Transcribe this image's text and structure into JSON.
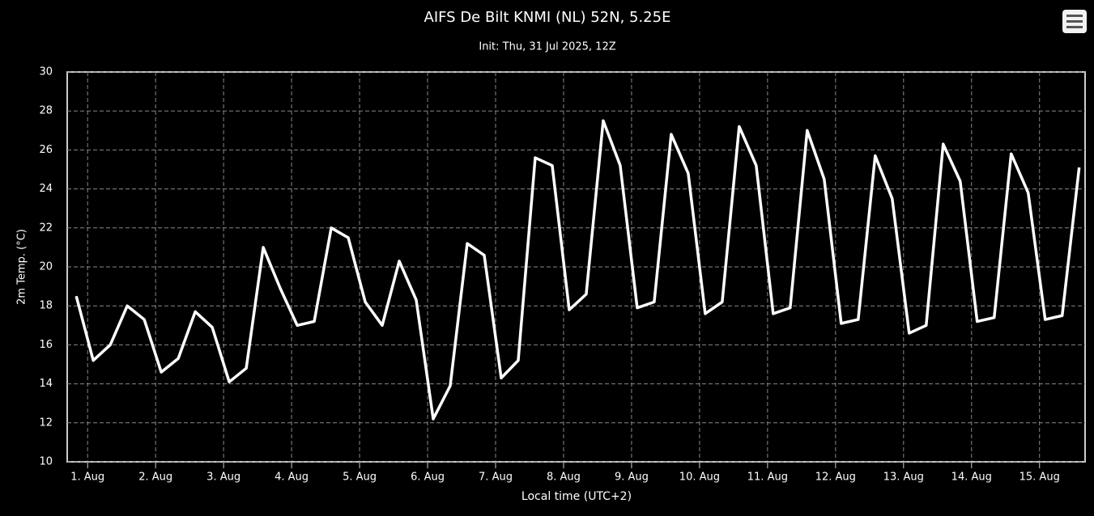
{
  "chart_data": {
    "type": "line",
    "title": "AIFS De Bilt KNMI (NL) 52N, 5.25E",
    "subtitle": "Init: Thu, 31 Jul 2025, 12Z",
    "x_label": "Local time (UTC+2)",
    "y_label": "2m Temp. (°C)",
    "x": [
      0.833,
      1.083,
      1.333,
      1.583,
      1.833,
      2.083,
      2.333,
      2.583,
      2.833,
      3.083,
      3.333,
      3.583,
      3.833,
      4.083,
      4.333,
      4.583,
      4.833,
      5.083,
      5.333,
      5.583,
      5.833,
      6.083,
      6.333,
      6.583,
      6.833,
      7.083,
      7.333,
      7.583,
      7.833,
      8.083,
      8.333,
      8.583,
      8.833,
      9.083,
      9.333,
      9.583,
      9.833,
      10.083,
      10.333,
      10.583,
      10.833,
      11.083,
      11.333,
      11.583,
      11.833,
      12.083,
      12.333,
      12.583,
      12.833,
      13.083,
      13.333,
      13.583,
      13.833,
      14.083,
      14.333,
      14.583,
      14.833,
      15.083,
      15.333,
      15.583
    ],
    "series": [
      {
        "name": "2m Temp.",
        "color": "#ffffff",
        "values": [
          18.5,
          15.2,
          16.0,
          18.0,
          17.3,
          14.6,
          15.3,
          17.7,
          16.9,
          14.1,
          14.8,
          21.0,
          18.9,
          17.0,
          17.2,
          22.0,
          21.5,
          18.2,
          17.0,
          20.3,
          18.3,
          12.2,
          13.9,
          21.2,
          20.6,
          14.3,
          15.2,
          25.6,
          25.2,
          17.8,
          18.6,
          27.5,
          25.2,
          17.9,
          18.2,
          26.8,
          24.8,
          17.6,
          18.2,
          27.2,
          25.2,
          17.6,
          17.9,
          27.0,
          24.5,
          17.1,
          17.3,
          25.7,
          23.5,
          16.6,
          17.0,
          26.3,
          24.4,
          17.2,
          17.4,
          25.8,
          23.8,
          17.3,
          17.5,
          25.1
        ]
      }
    ],
    "xlim": [
      0.7,
      15.67
    ],
    "xticks": [
      {
        "value": 1,
        "label": "1. Aug"
      },
      {
        "value": 2,
        "label": "2. Aug"
      },
      {
        "value": 3,
        "label": "3. Aug"
      },
      {
        "value": 4,
        "label": "4. Aug"
      },
      {
        "value": 5,
        "label": "5. Aug"
      },
      {
        "value": 6,
        "label": "6. Aug"
      },
      {
        "value": 7,
        "label": "7. Aug"
      },
      {
        "value": 8,
        "label": "8. Aug"
      },
      {
        "value": 9,
        "label": "9. Aug"
      },
      {
        "value": 10,
        "label": "10. Aug"
      },
      {
        "value": 11,
        "label": "11. Aug"
      },
      {
        "value": 12,
        "label": "12. Aug"
      },
      {
        "value": 13,
        "label": "13. Aug"
      },
      {
        "value": 14,
        "label": "14. Aug"
      },
      {
        "value": 15,
        "label": "15. Aug"
      }
    ],
    "ylim": [
      10,
      30
    ],
    "yticks": [
      10,
      12,
      14,
      16,
      18,
      20,
      22,
      24,
      26,
      28,
      30
    ],
    "grid": true
  }
}
